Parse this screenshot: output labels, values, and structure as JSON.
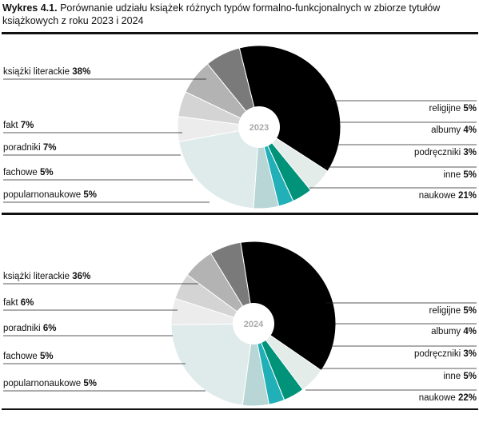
{
  "title": {
    "label": "Wykres 4.1.",
    "text": "Porównanie udziału książek różnych typów formalno-funkcjonalnych w zbiorze tytułów książkowych z roku 2023 i 2024"
  },
  "chart_data": [
    {
      "type": "pie",
      "center_label": "2023",
      "slices": [
        {
          "label": "książki literackie",
          "value_label": "38%",
          "value": 38,
          "color": "#000000"
        },
        {
          "label": "religijne",
          "value_label": "5%",
          "value": 5,
          "color": "#e3ece8"
        },
        {
          "label": "albumy",
          "value_label": "4%",
          "value": 4,
          "color": "#00937a"
        },
        {
          "label": "podręczniki",
          "value_label": "3%",
          "value": 3,
          "color": "#22b0b8"
        },
        {
          "label": "inne",
          "value_label": "5%",
          "value": 5,
          "color": "#b7d6d5"
        },
        {
          "label": "naukowe",
          "value_label": "21%",
          "value": 21,
          "color": "#deebea"
        },
        {
          "label": "popularnonaukowe",
          "value_label": "5%",
          "value": 5,
          "color": "#ececec"
        },
        {
          "label": "fachowe",
          "value_label": "5%",
          "value": 5,
          "color": "#d4d4d4"
        },
        {
          "label": "poradniki",
          "value_label": "7%",
          "value": 7,
          "color": "#b3b3b3"
        },
        {
          "label": "fakt",
          "value_label": "7%",
          "value": 7,
          "color": "#7a7a7a"
        }
      ]
    },
    {
      "type": "pie",
      "center_label": "2024",
      "slices": [
        {
          "label": "książki literackie",
          "value_label": "36%",
          "value": 36,
          "color": "#000000"
        },
        {
          "label": "religijne",
          "value_label": "5%",
          "value": 5,
          "color": "#e3ece8"
        },
        {
          "label": "albumy",
          "value_label": "4%",
          "value": 4,
          "color": "#00937a"
        },
        {
          "label": "podręczniki",
          "value_label": "3%",
          "value": 3,
          "color": "#22b0b8"
        },
        {
          "label": "inne",
          "value_label": "5%",
          "value": 5,
          "color": "#b7d6d5"
        },
        {
          "label": "naukowe",
          "value_label": "22%",
          "value": 22,
          "color": "#deebea"
        },
        {
          "label": "popularnonaukowe",
          "value_label": "5%",
          "value": 5,
          "color": "#ececec"
        },
        {
          "label": "fachowe",
          "value_label": "5%",
          "value": 5,
          "color": "#d4d4d4"
        },
        {
          "label": "poradniki",
          "value_label": "6%",
          "value": 6,
          "color": "#b3b3b3"
        },
        {
          "label": "fakt",
          "value_label": "6%",
          "value": 6,
          "color": "#7a7a7a"
        }
      ]
    }
  ]
}
